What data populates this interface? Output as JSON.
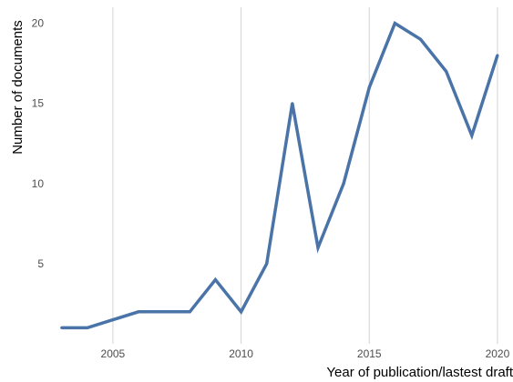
{
  "chart_data": {
    "type": "line",
    "title": "",
    "xlabel": "Year of publication/lastest draft",
    "ylabel": "Number of documents",
    "xlim": [
      2002.8,
      2020.5
    ],
    "ylim": [
      0,
      21
    ],
    "x_ticks": [
      "2005",
      "2010",
      "2015",
      "2020"
    ],
    "y_ticks": [
      "5",
      "10",
      "15",
      "20"
    ],
    "grid": "vertical",
    "legend": "none",
    "series": [
      {
        "color": "#4a74a8",
        "points": [
          {
            "x": 2003,
            "y": 1
          },
          {
            "x": 2004,
            "y": 1
          },
          {
            "x": 2005,
            "y": 1.5
          },
          {
            "x": 2006,
            "y": 2
          },
          {
            "x": 2007,
            "y": 2
          },
          {
            "x": 2008,
            "y": 2
          },
          {
            "x": 2009,
            "y": 4
          },
          {
            "x": 2010,
            "y": 2
          },
          {
            "x": 2011,
            "y": 5
          },
          {
            "x": 2012,
            "y": 15
          },
          {
            "x": 2013,
            "y": 6
          },
          {
            "x": 2014,
            "y": 10
          },
          {
            "x": 2015,
            "y": 16
          },
          {
            "x": 2016,
            "y": 20
          },
          {
            "x": 2017,
            "y": 19
          },
          {
            "x": 2018,
            "y": 17
          },
          {
            "x": 2019,
            "y": 13
          },
          {
            "x": 2020,
            "y": 18
          }
        ]
      }
    ]
  }
}
